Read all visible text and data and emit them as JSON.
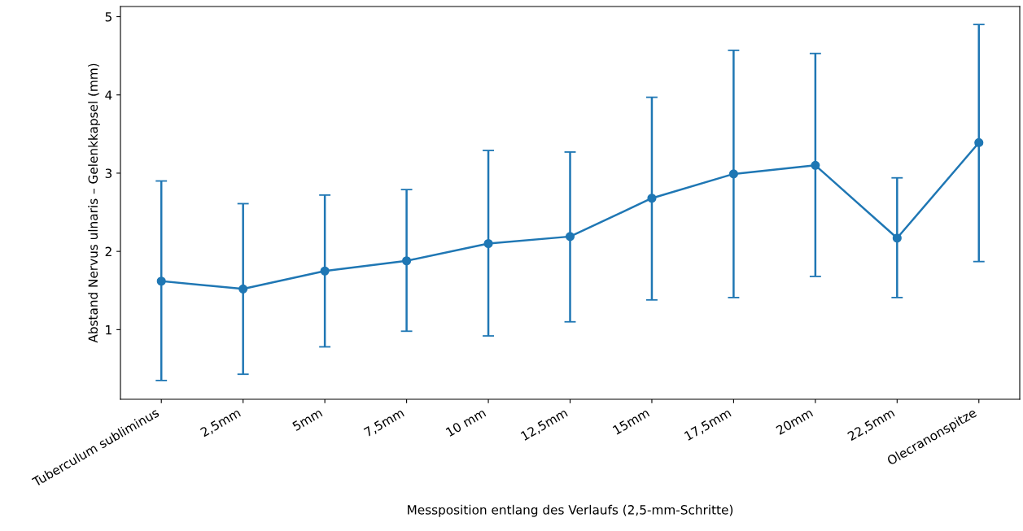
{
  "chart_data": {
    "type": "line",
    "xlabel": "Messposition entlang des Verlaufs (2,5-mm-Schritte)",
    "ylabel": "Abstand Nervus ulnaris – Gelenkkapsel (mm)",
    "categories": [
      "Tuberculum subliminus",
      "2,5mm",
      "5mm",
      "7,5mm",
      "10 mm",
      "12,5mm",
      "15mm",
      "17,5mm",
      "20mm",
      "22,5mm",
      "Olecranonspitze"
    ],
    "values": [
      1.62,
      1.52,
      1.75,
      1.88,
      2.1,
      2.19,
      2.68,
      2.99,
      3.1,
      2.17,
      3.39
    ],
    "errors": [
      [
        0.35,
        2.9
      ],
      [
        0.43,
        2.61
      ],
      [
        0.78,
        2.72
      ],
      [
        0.98,
        2.79
      ],
      [
        0.92,
        3.29
      ],
      [
        1.1,
        3.27
      ],
      [
        1.38,
        3.97
      ],
      [
        1.41,
        4.57
      ],
      [
        1.68,
        4.53
      ],
      [
        1.41,
        2.94
      ],
      [
        1.87,
        4.9
      ]
    ],
    "color": "#1f77b4",
    "marker": "circle",
    "line_style": "solid",
    "ylim": [
      0.11,
      5.13
    ],
    "yticks": [
      1,
      2,
      3,
      4,
      5
    ],
    "grid": false
  }
}
